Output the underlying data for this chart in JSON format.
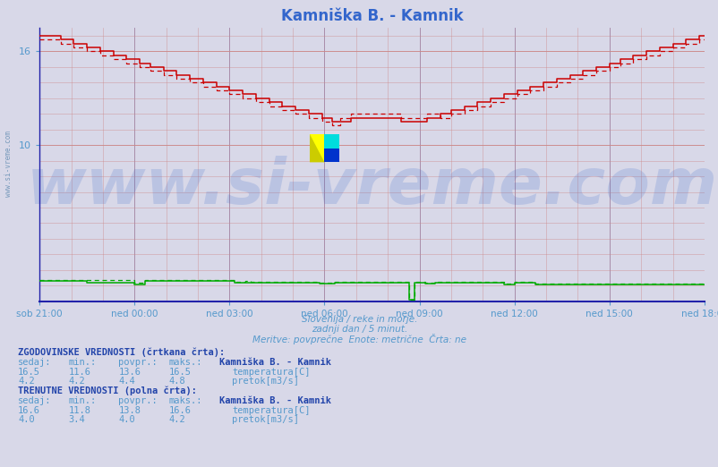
{
  "title": "Kamniška B. - Kamnik",
  "title_color": "#3366cc",
  "bg_color": "#d8d8e8",
  "xlabel_texts": [
    "sob 21:00",
    "ned 00:00",
    "ned 03:00",
    "ned 06:00",
    "ned 09:00",
    "ned 12:00",
    "ned 15:00",
    "ned 18:00"
  ],
  "x_ticks": [
    0,
    180,
    360,
    540,
    720,
    900,
    1080,
    1260
  ],
  "x_total_minutes": 1260,
  "ylim": [
    0,
    17.5
  ],
  "ytick_vals": [
    10,
    16
  ],
  "ytick_labels": [
    "10",
    "16"
  ],
  "grid_color_vertical": "#9999bb",
  "grid_color_horizontal": "#dd9999",
  "footer_color": "#5599cc",
  "temp_color": "#cc0000",
  "flow_color": "#00aa00",
  "watermark_text": "www.si-vreme.com",
  "watermark_color": "#3366cc",
  "watermark_alpha": 0.18,
  "watermark_fontsize": 52,
  "left_text": "www.si-vreme.com",
  "watermark_line1": "Slovenija / reke in morje.",
  "watermark_line2": "zadnji dan / 5 minut.",
  "watermark_line3": "Meritve: povprečne  Enote: metrične  Črta: ne",
  "temp_hist_sedaj": 16.5,
  "temp_hist_min": 11.6,
  "temp_hist_povpr": 13.6,
  "temp_hist_maks": 16.5,
  "temp_curr_sedaj": 16.6,
  "temp_curr_min": 11.8,
  "temp_curr_povpr": 13.8,
  "temp_curr_maks": 16.6,
  "flow_hist_sedaj": 4.2,
  "flow_hist_min": 4.2,
  "flow_hist_povpr": 4.4,
  "flow_hist_maks": 4.8,
  "flow_curr_sedaj": 4.0,
  "flow_curr_min": 3.4,
  "flow_curr_povpr": 4.0,
  "flow_curr_maks": 4.2
}
